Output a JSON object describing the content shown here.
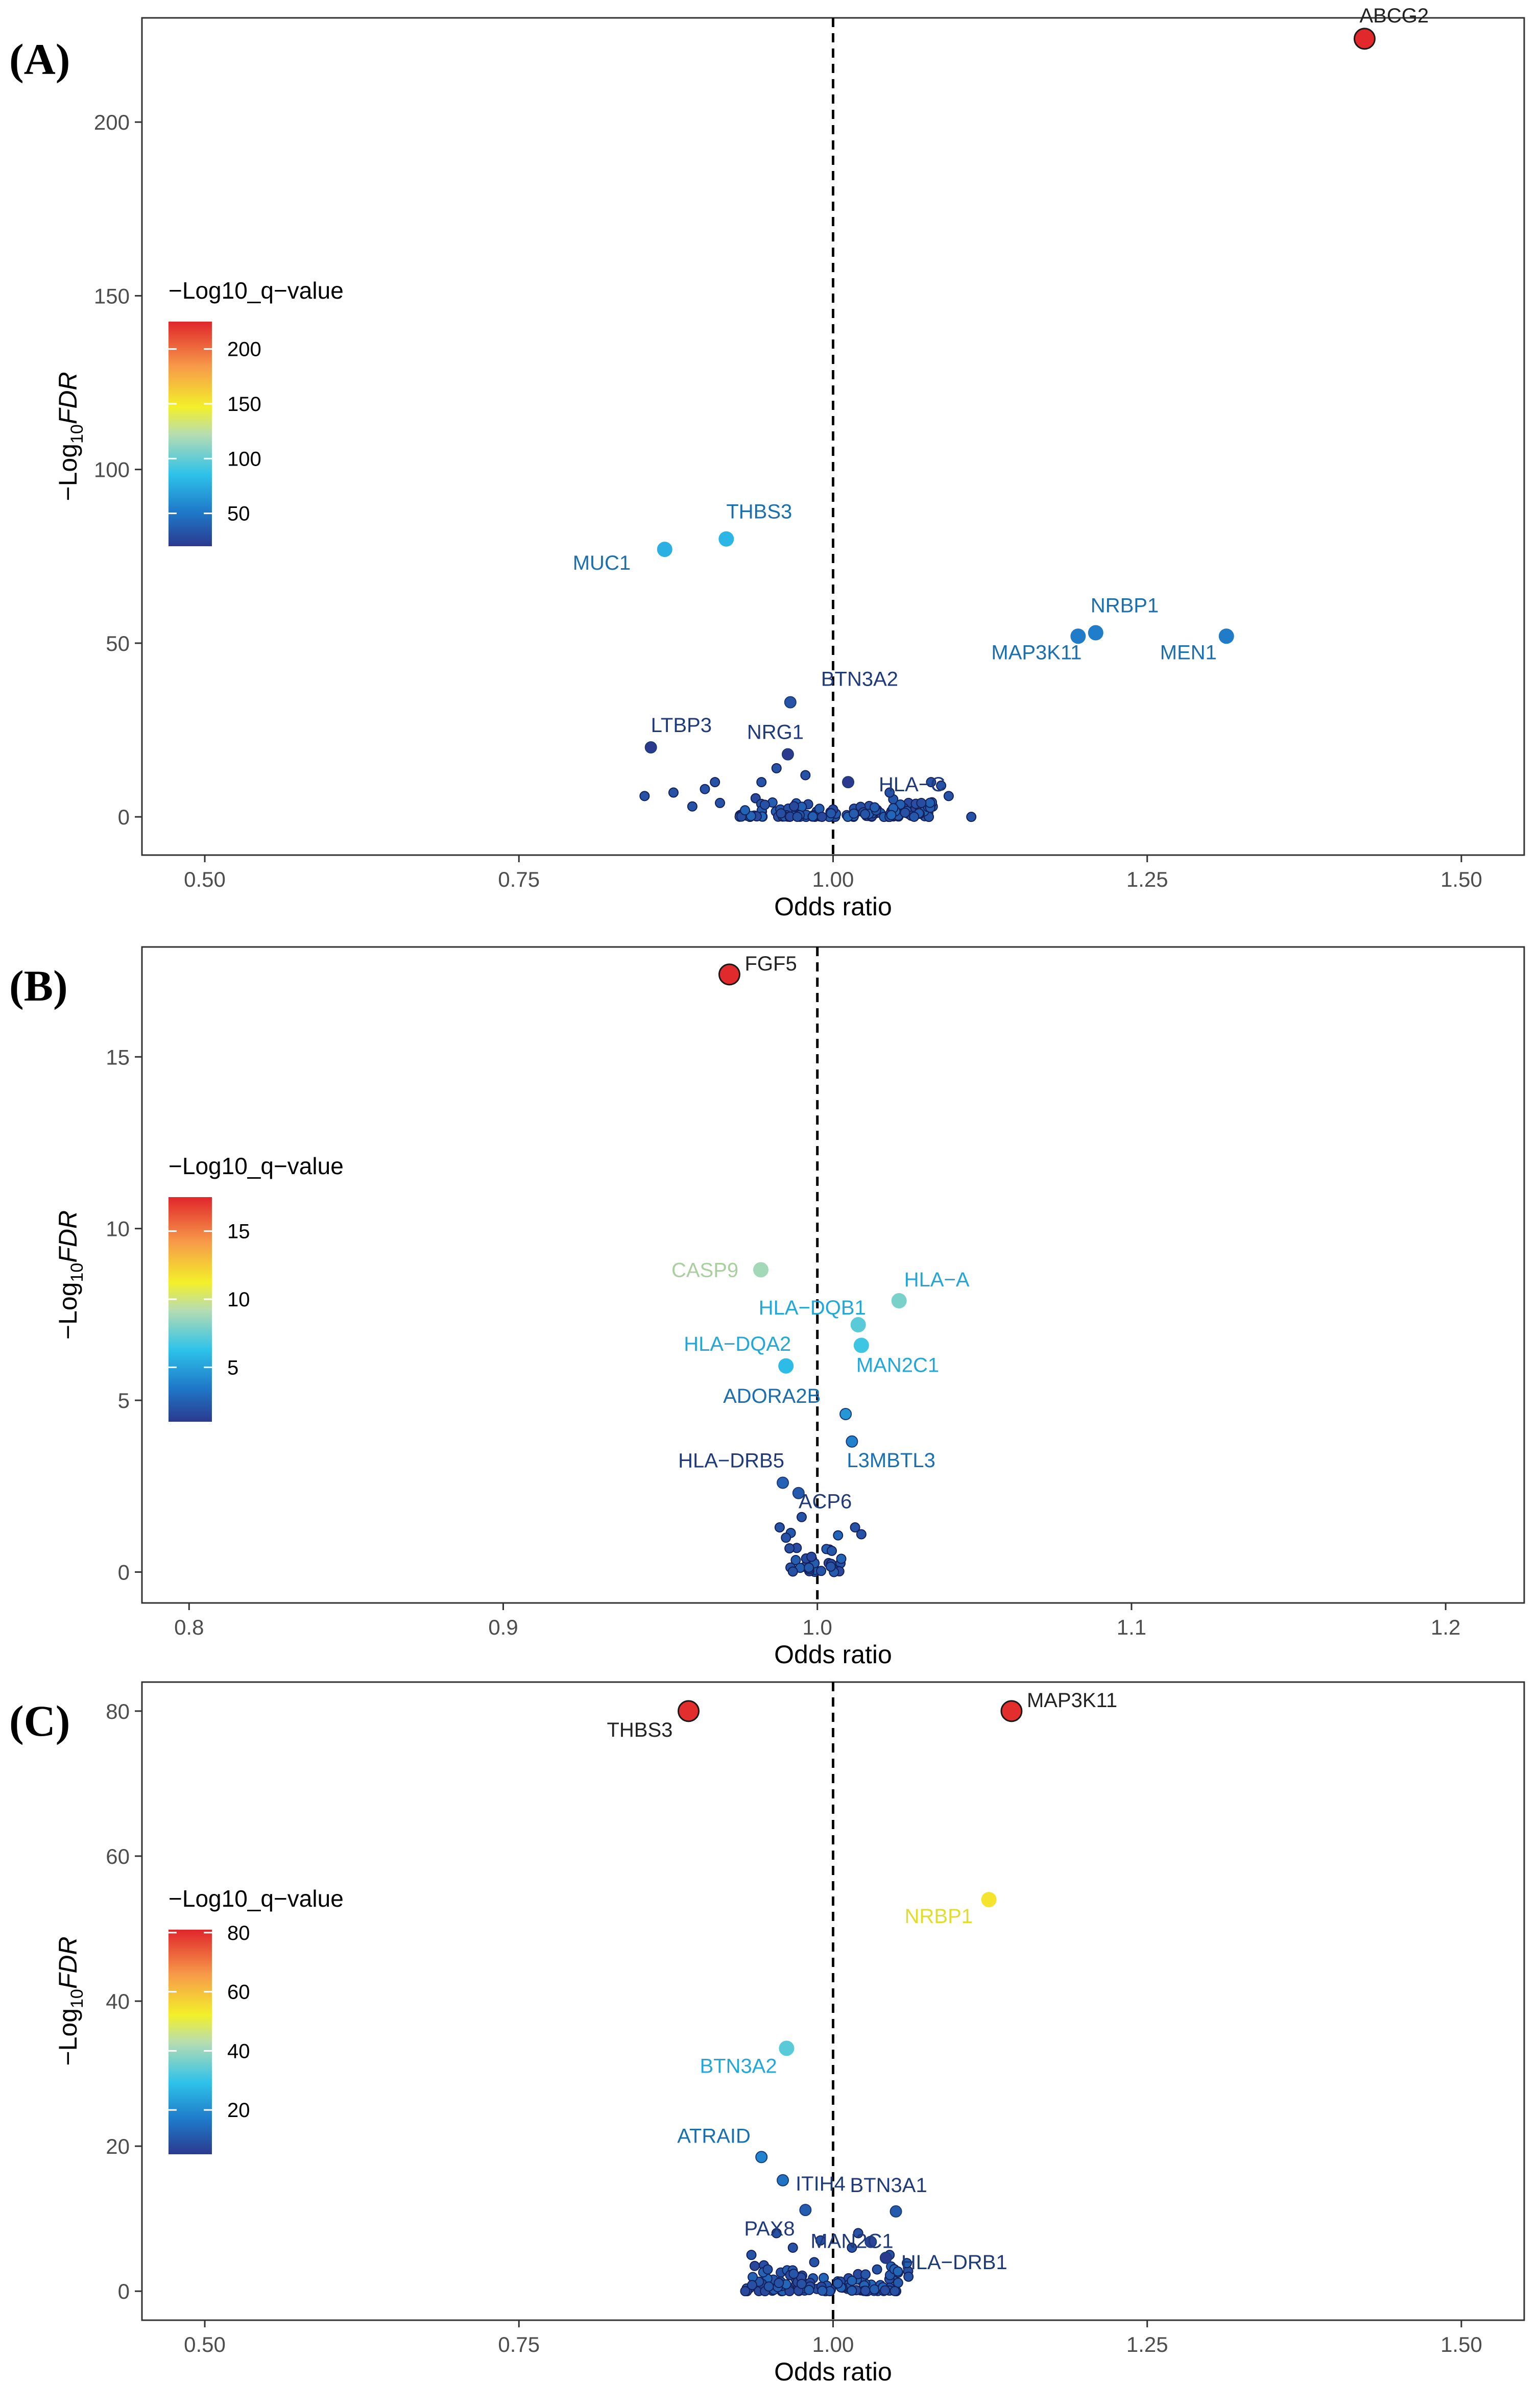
{
  "chart_data": [
    {
      "type": "scatter",
      "panel_label": "(A)",
      "xlabel": "Odds ratio",
      "ylabel": {
        "prefix": "−Log",
        "sub": "10",
        "italic": "FDR"
      },
      "xlim": [
        0.45,
        1.55
      ],
      "ylim": [
        -11,
        230
      ],
      "xticks": [
        0.5,
        0.75,
        1.0,
        1.25,
        1.5
      ],
      "xtick_labels": [
        "0.50",
        "0.75",
        "1.00",
        "1.25",
        "1.50"
      ],
      "yticks": [
        0,
        50,
        100,
        150,
        200
      ],
      "ytick_labels": [
        "0",
        "50",
        "100",
        "150",
        "200"
      ],
      "reference_line_x": 1.0,
      "legend": {
        "title": "−Log10_q−value",
        "range": [
          20,
          225
        ],
        "ticks": [
          50,
          100,
          150,
          200
        ],
        "tick_labels": [
          "50",
          "100",
          "150",
          "200"
        ]
      },
      "labeled_points": [
        {
          "label": "ABCG2",
          "x": 1.423,
          "y": 224,
          "q": 224,
          "size": "large"
        },
        {
          "label": "THBS3",
          "x": 0.915,
          "y": 80,
          "q": 80,
          "size": "medium"
        },
        {
          "label": "MUC1",
          "x": 0.866,
          "y": 77,
          "q": 77,
          "size": "medium"
        },
        {
          "label": "NRBP1",
          "x": 1.209,
          "y": 53,
          "q": 53,
          "size": "medium"
        },
        {
          "label": "MAP3K11",
          "x": 1.195,
          "y": 52,
          "q": 52,
          "size": "medium"
        },
        {
          "label": "MEN1",
          "x": 1.313,
          "y": 52,
          "q": 52,
          "size": "medium"
        },
        {
          "label": "BTN3A2",
          "x": 0.966,
          "y": 33,
          "q": 33,
          "size": "small"
        },
        {
          "label": "LTBP3",
          "x": 0.855,
          "y": 20,
          "q": 20,
          "size": "small"
        },
        {
          "label": "NRG1",
          "x": 0.964,
          "y": 18,
          "q": 18,
          "size": "small"
        },
        {
          "label": "HLA−C",
          "x": 1.012,
          "y": 10,
          "q": 10,
          "size": "small"
        }
      ],
      "cluster": {
        "count": 140,
        "x_min": 0.925,
        "x_max": 1.08,
        "y_max": 7,
        "far_points": [
          {
            "x": 0.85,
            "y": 6
          },
          {
            "x": 0.873,
            "y": 7
          },
          {
            "x": 0.888,
            "y": 3
          },
          {
            "x": 0.898,
            "y": 8
          },
          {
            "x": 0.906,
            "y": 10
          },
          {
            "x": 0.91,
            "y": 4
          },
          {
            "x": 0.943,
            "y": 10
          },
          {
            "x": 0.955,
            "y": 14
          },
          {
            "x": 0.978,
            "y": 12
          },
          {
            "x": 1.045,
            "y": 7
          },
          {
            "x": 1.078,
            "y": 10
          },
          {
            "x": 1.086,
            "y": 9
          },
          {
            "x": 1.092,
            "y": 6
          },
          {
            "x": 1.11,
            "y": 0
          }
        ]
      }
    },
    {
      "type": "scatter",
      "panel_label": "(B)",
      "xlabel": "Odds ratio",
      "ylabel": {
        "prefix": "−Log",
        "sub": "10",
        "italic": "FDR"
      },
      "xlim": [
        0.785,
        1.225
      ],
      "ylim": [
        -0.9,
        18.2
      ],
      "xticks": [
        0.8,
        0.9,
        1.0,
        1.1,
        1.2
      ],
      "xtick_labels": [
        "0.8",
        "0.9",
        "1.0",
        "1.1",
        "1.2"
      ],
      "yticks": [
        0,
        5,
        10,
        15
      ],
      "ytick_labels": [
        "0",
        "5",
        "10",
        "15"
      ],
      "reference_line_x": 1.0,
      "legend": {
        "title": "−Log10_q−value",
        "range": [
          1,
          17.5
        ],
        "ticks": [
          5,
          10,
          15
        ],
        "tick_labels": [
          "5",
          "10",
          "15"
        ]
      },
      "labeled_points": [
        {
          "label": "FGF5",
          "x": 0.972,
          "y": 17.4,
          "q": 17.4,
          "size": "large"
        },
        {
          "label": "CASP9",
          "x": 0.982,
          "y": 8.8,
          "q": 8.8,
          "size": "medium"
        },
        {
          "label": "HLA−A",
          "x": 1.026,
          "y": 7.9,
          "q": 7.9,
          "size": "medium"
        },
        {
          "label": "HLA−DQB1",
          "x": 1.013,
          "y": 7.2,
          "q": 7.2,
          "size": "medium"
        },
        {
          "label": "MAN2C1",
          "x": 1.014,
          "y": 6.6,
          "q": 6.6,
          "size": "medium"
        },
        {
          "label": "HLA−DQA2",
          "x": 0.99,
          "y": 6.0,
          "q": 6.0,
          "size": "medium"
        },
        {
          "label": "ADORA2B",
          "x": 1.009,
          "y": 4.6,
          "q": 4.6,
          "size": "small"
        },
        {
          "label": "L3MBTL3",
          "x": 1.011,
          "y": 3.8,
          "q": 3.8,
          "size": "small"
        },
        {
          "label": "HLA−DRB5",
          "x": 0.989,
          "y": 2.6,
          "q": 2.6,
          "size": "small"
        },
        {
          "label": "ACP6",
          "x": 0.994,
          "y": 2.3,
          "q": 2.3,
          "size": "small"
        }
      ],
      "cluster": {
        "count": 32,
        "x_min": 0.991,
        "x_max": 1.008,
        "y_max": 1.3,
        "far_points": [
          {
            "x": 0.988,
            "y": 1.3
          },
          {
            "x": 1.012,
            "y": 1.3
          },
          {
            "x": 1.014,
            "y": 1.1
          },
          {
            "x": 0.99,
            "y": 1.0
          },
          {
            "x": 0.995,
            "y": 1.6
          }
        ]
      }
    },
    {
      "type": "scatter",
      "panel_label": "(C)",
      "xlabel": "Odds ratio",
      "ylabel": {
        "prefix": "−Log",
        "sub": "10",
        "italic": "FDR"
      },
      "xlim": [
        0.45,
        1.55
      ],
      "ylim": [
        -4,
        84
      ],
      "xticks": [
        0.5,
        0.75,
        1.0,
        1.25,
        1.5
      ],
      "xtick_labels": [
        "0.50",
        "0.75",
        "1.00",
        "1.25",
        "1.50"
      ],
      "yticks": [
        0,
        20,
        40,
        60,
        80
      ],
      "ytick_labels": [
        "0",
        "20",
        "40",
        "60",
        "80"
      ],
      "reference_line_x": 1.0,
      "legend": {
        "title": "−Log10_q−value",
        "range": [
          5,
          81
        ],
        "ticks": [
          20,
          40,
          60,
          80
        ],
        "tick_labels": [
          "20",
          "40",
          "60",
          "80"
        ]
      },
      "labeled_points": [
        {
          "label": "THBS3",
          "x": 0.885,
          "y": 80,
          "q": 80,
          "size": "large"
        },
        {
          "label": "MAP3K11",
          "x": 1.142,
          "y": 80,
          "q": 80,
          "size": "large"
        },
        {
          "label": "NRBP1",
          "x": 1.124,
          "y": 54,
          "q": 54,
          "size": "medium"
        },
        {
          "label": "BTN3A2",
          "x": 0.963,
          "y": 33.5,
          "q": 33.5,
          "size": "medium"
        },
        {
          "label": "ATRAID",
          "x": 0.943,
          "y": 18.5,
          "q": 18.5,
          "size": "small"
        },
        {
          "label": "ITIH4",
          "x": 0.96,
          "y": 15.3,
          "q": 15.3,
          "size": "small"
        },
        {
          "label": "PAX8",
          "x": 0.978,
          "y": 11.2,
          "q": 11.2,
          "size": "small"
        },
        {
          "label": "BTN3A1",
          "x": 1.05,
          "y": 11,
          "q": 11,
          "size": "small"
        },
        {
          "label": "MAN2C1",
          "x": 1.03,
          "y": 6.8,
          "q": 6.8,
          "size": "small"
        },
        {
          "label": "HLA−DRB1",
          "x": 1.042,
          "y": 4.6,
          "q": 4.6,
          "size": "small"
        }
      ],
      "cluster": {
        "count": 110,
        "x_min": 0.93,
        "x_max": 1.06,
        "y_max": 5,
        "far_points": [
          {
            "x": 0.935,
            "y": 5
          },
          {
            "x": 0.948,
            "y": 3
          },
          {
            "x": 0.955,
            "y": 8
          },
          {
            "x": 0.968,
            "y": 6
          },
          {
            "x": 0.985,
            "y": 4
          },
          {
            "x": 1.015,
            "y": 6
          },
          {
            "x": 1.035,
            "y": 3
          },
          {
            "x": 1.045,
            "y": 5
          },
          {
            "x": 1.06,
            "y": 2
          },
          {
            "x": 0.99,
            "y": 7
          },
          {
            "x": 1.02,
            "y": 8
          },
          {
            "x": 0.975,
            "y": 1
          }
        ]
      }
    }
  ]
}
